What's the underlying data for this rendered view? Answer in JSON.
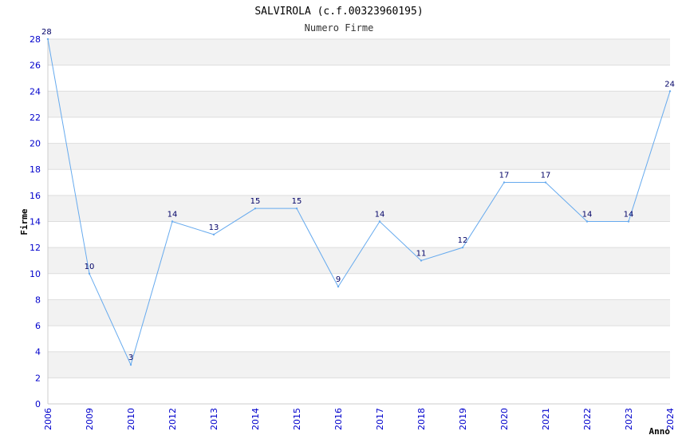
{
  "chart_data": {
    "type": "line",
    "title": "SALVIROLA (c.f.00323960195)",
    "subtitle": "Numero Firme",
    "xlabel": "Anno",
    "ylabel": "Firme",
    "categories": [
      "2006",
      "2009",
      "2010",
      "2012",
      "2013",
      "2014",
      "2015",
      "2016",
      "2017",
      "2018",
      "2019",
      "2020",
      "2021",
      "2022",
      "2023",
      "2024"
    ],
    "values": [
      28,
      10,
      3,
      14,
      13,
      15,
      15,
      9,
      14,
      11,
      12,
      17,
      17,
      14,
      14,
      24
    ],
    "ylim": [
      0,
      28
    ],
    "yticks": [
      0,
      2,
      4,
      6,
      8,
      10,
      12,
      14,
      16,
      18,
      20,
      22,
      24,
      26,
      28
    ],
    "colors": {
      "line": "#66aaee",
      "band": "#f2f2f2",
      "grid": "#dddddd",
      "tick_text": "#0000cc",
      "label_text": "#000066"
    }
  }
}
